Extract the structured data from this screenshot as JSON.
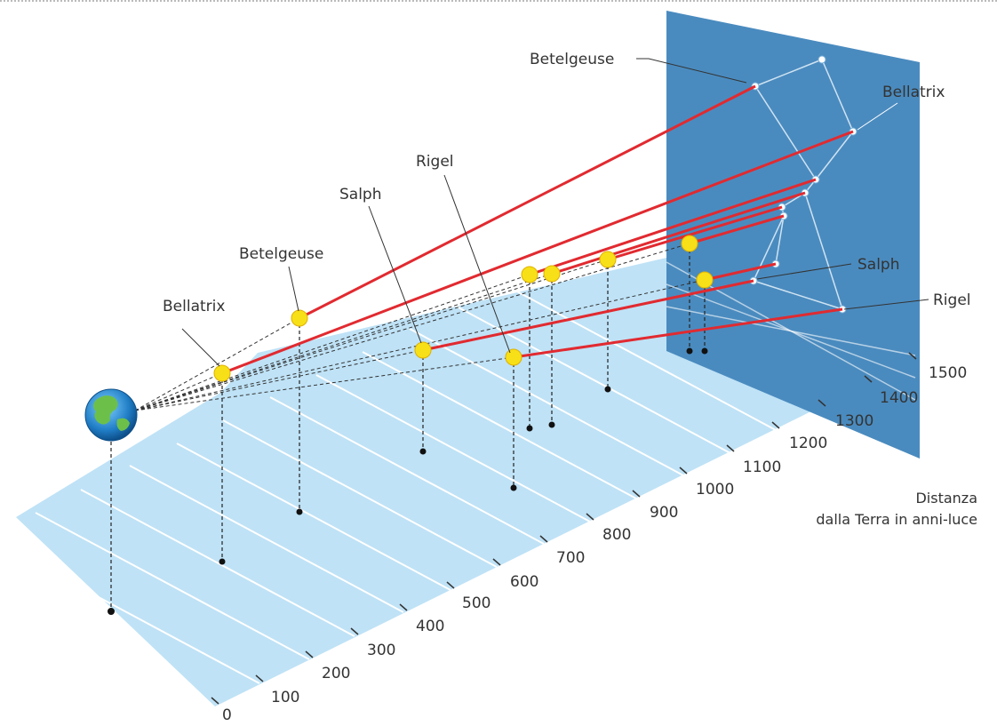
{
  "colors": {
    "floor": "#bfe2f6",
    "floor_line": "#ffffff",
    "panel": "#4a8bbf",
    "sightline": "#e12a30",
    "star": "#f7e017",
    "star_stroke": "#e0b000",
    "projected_star": "#ffffff",
    "constellation_line": "#cfe3f2",
    "leader": "#333333"
  },
  "distance_axis": {
    "title_line1": "Distanza",
    "title_line2": "dalla Terra in anni-luce",
    "ticks": [
      "0",
      "100",
      "200",
      "300",
      "400",
      "500",
      "600",
      "700",
      "800",
      "900",
      "1000",
      "1100",
      "1200",
      "1300",
      "1400",
      "1500"
    ]
  },
  "earth": {
    "icon": "earth-globe-icon"
  },
  "stars_3d": [
    {
      "label": "Bellatrix"
    },
    {
      "label": "Betelgeuse"
    },
    {
      "label": "Salph"
    },
    {
      "label": "Rigel"
    }
  ],
  "projected_labels": {
    "betelgeuse": "Betelgeuse",
    "bellatrix": "Bellatrix",
    "salph": "Salph",
    "rigel": "Rigel"
  }
}
